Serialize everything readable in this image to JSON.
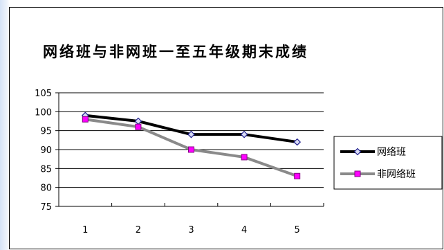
{
  "chart_data": {
    "type": "line",
    "title": "网络班与非网班一至五年级期末成绩",
    "categories": [
      "1",
      "2",
      "3",
      "4",
      "5"
    ],
    "ylim": [
      75,
      105
    ],
    "yticks": [
      75,
      80,
      85,
      90,
      95,
      100,
      105
    ],
    "grid": true,
    "legend": "right",
    "series": [
      {
        "name": "网络班",
        "values": [
          99,
          97.5,
          94,
          94,
          92
        ],
        "color": "#000000",
        "marker": "diamond",
        "marker_fill": "#d9dcf5",
        "marker_stroke": "#1c1c8c"
      },
      {
        "name": "非网络班",
        "values": [
          98,
          96,
          90,
          88,
          83
        ],
        "color": "#8a8a8a",
        "marker": "square",
        "marker_fill": "#ff00ff",
        "marker_stroke": "#800080"
      }
    ]
  }
}
